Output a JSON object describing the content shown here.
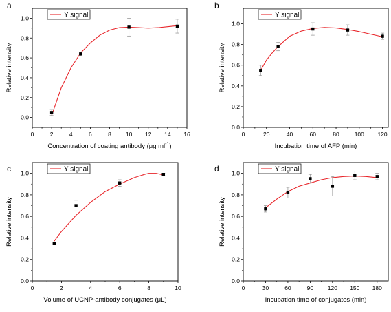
{
  "chart_data": [
    {
      "panel_label": "a",
      "type": "scatter",
      "xlabel_pre": "Concentration of coating antibody (",
      "xlabel_unit": "μg ml",
      "xlabel_sup": "-1",
      "xlabel_post": ")",
      "ylabel": "Relative intensity",
      "xlim": [
        0,
        16
      ],
      "ylim": [
        -0.1,
        1.1
      ],
      "xticks": [
        0,
        2,
        4,
        6,
        8,
        10,
        12,
        14,
        16
      ],
      "yticks": [
        0.0,
        0.2,
        0.4,
        0.6,
        0.8,
        1.0
      ],
      "ytick_labels": [
        "0.0",
        "0.2",
        "0.4",
        "0.6",
        "0.8",
        "1.0"
      ],
      "legend": "Y signal",
      "legend_position": "top-left",
      "points": [
        {
          "x": 2,
          "y": 0.05,
          "err": 0.03
        },
        {
          "x": 5,
          "y": 0.64,
          "err": 0.02
        },
        {
          "x": 10,
          "y": 0.91,
          "err": 0.09
        },
        {
          "x": 15,
          "y": 0.92,
          "err": 0.07
        }
      ],
      "fit": [
        [
          2,
          0.02
        ],
        [
          3,
          0.3
        ],
        [
          4,
          0.5
        ],
        [
          5,
          0.65
        ],
        [
          6,
          0.75
        ],
        [
          7,
          0.83
        ],
        [
          8,
          0.88
        ],
        [
          9,
          0.905
        ],
        [
          10,
          0.91
        ],
        [
          11,
          0.905
        ],
        [
          12,
          0.9
        ],
        [
          13,
          0.905
        ],
        [
          14,
          0.915
        ],
        [
          15,
          0.925
        ]
      ]
    },
    {
      "panel_label": "b",
      "type": "scatter",
      "xlabel": "Incubation time of AFP (min)",
      "ylabel": "Relative intensity",
      "xlim": [
        0,
        125
      ],
      "ylim": [
        0,
        1.15
      ],
      "xticks": [
        0,
        20,
        40,
        60,
        80,
        100,
        120
      ],
      "yticks": [
        0.0,
        0.2,
        0.4,
        0.6,
        0.8,
        1.0
      ],
      "ytick_labels": [
        "0.0",
        "0.2",
        "0.4",
        "0.6",
        "0.8",
        "1.0"
      ],
      "legend": "Y signal",
      "legend_position": "top-left",
      "points": [
        {
          "x": 15,
          "y": 0.55,
          "err": 0.05
        },
        {
          "x": 30,
          "y": 0.78,
          "err": 0.04
        },
        {
          "x": 60,
          "y": 0.95,
          "err": 0.06
        },
        {
          "x": 90,
          "y": 0.94,
          "err": 0.05
        },
        {
          "x": 120,
          "y": 0.88,
          "err": 0.03
        }
      ],
      "fit": [
        [
          15,
          0.55
        ],
        [
          20,
          0.65
        ],
        [
          25,
          0.72
        ],
        [
          30,
          0.78
        ],
        [
          40,
          0.88
        ],
        [
          50,
          0.93
        ],
        [
          60,
          0.955
        ],
        [
          70,
          0.965
        ],
        [
          80,
          0.96
        ],
        [
          90,
          0.945
        ],
        [
          100,
          0.925
        ],
        [
          110,
          0.9
        ],
        [
          120,
          0.875
        ]
      ]
    },
    {
      "panel_label": "c",
      "type": "scatter",
      "xlabel_pre": "Volume of UCNP-antibody conjugates (",
      "xlabel_unit": "μL",
      "xlabel_sup": "",
      "xlabel_post": ")",
      "ylabel": "Relative intensity",
      "xlim": [
        0,
        10
      ],
      "ylim": [
        0,
        1.1
      ],
      "xticks": [
        0,
        2,
        4,
        6,
        8,
        10
      ],
      "yticks": [
        0.0,
        0.2,
        0.4,
        0.6,
        0.8,
        1.0
      ],
      "ytick_labels": [
        "0.0",
        "0.2",
        "0.4",
        "0.6",
        "0.8",
        "1.0"
      ],
      "legend": "Y signal",
      "legend_position": "top-left",
      "points": [
        {
          "x": 1.5,
          "y": 0.35,
          "err": 0.0
        },
        {
          "x": 3,
          "y": 0.7,
          "err": 0.05
        },
        {
          "x": 6,
          "y": 0.91,
          "err": 0.03
        },
        {
          "x": 9,
          "y": 0.99,
          "err": 0.01
        }
      ],
      "fit": [
        [
          1.5,
          0.37
        ],
        [
          2,
          0.46
        ],
        [
          3,
          0.61
        ],
        [
          4,
          0.73
        ],
        [
          5,
          0.83
        ],
        [
          6,
          0.9
        ],
        [
          7,
          0.96
        ],
        [
          7.7,
          0.99
        ],
        [
          8,
          1.0
        ],
        [
          8.5,
          1.0
        ],
        [
          9,
          0.985
        ]
      ]
    },
    {
      "panel_label": "d",
      "type": "scatter",
      "xlabel": "Incubation time of conjugates (min)",
      "ylabel": "Relative intensity",
      "xlim": [
        0,
        195
      ],
      "ylim": [
        0,
        1.1
      ],
      "xticks": [
        0,
        30,
        60,
        90,
        120,
        150,
        180
      ],
      "yticks": [
        0.0,
        0.2,
        0.4,
        0.6,
        0.8,
        1.0
      ],
      "ytick_labels": [
        "0.0",
        "0.2",
        "0.4",
        "0.6",
        "0.8",
        "1.0"
      ],
      "legend": "Y signal",
      "legend_position": "top-left",
      "points": [
        {
          "x": 30,
          "y": 0.67,
          "err": 0.03
        },
        {
          "x": 60,
          "y": 0.82,
          "err": 0.05
        },
        {
          "x": 90,
          "y": 0.95,
          "err": 0.04
        },
        {
          "x": 120,
          "y": 0.88,
          "err": 0.09
        },
        {
          "x": 150,
          "y": 0.98,
          "err": 0.04
        },
        {
          "x": 180,
          "y": 0.97,
          "err": 0.03
        }
      ],
      "fit": [
        [
          30,
          0.68
        ],
        [
          45,
          0.76
        ],
        [
          60,
          0.83
        ],
        [
          75,
          0.88
        ],
        [
          90,
          0.91
        ],
        [
          105,
          0.94
        ],
        [
          120,
          0.96
        ],
        [
          135,
          0.97
        ],
        [
          150,
          0.975
        ],
        [
          165,
          0.97
        ],
        [
          180,
          0.96
        ]
      ]
    }
  ],
  "colors": {
    "fit_line": "#e8262b",
    "marker": "#000000",
    "errorbar": "#9a9a9a",
    "axis": "#000000"
  }
}
